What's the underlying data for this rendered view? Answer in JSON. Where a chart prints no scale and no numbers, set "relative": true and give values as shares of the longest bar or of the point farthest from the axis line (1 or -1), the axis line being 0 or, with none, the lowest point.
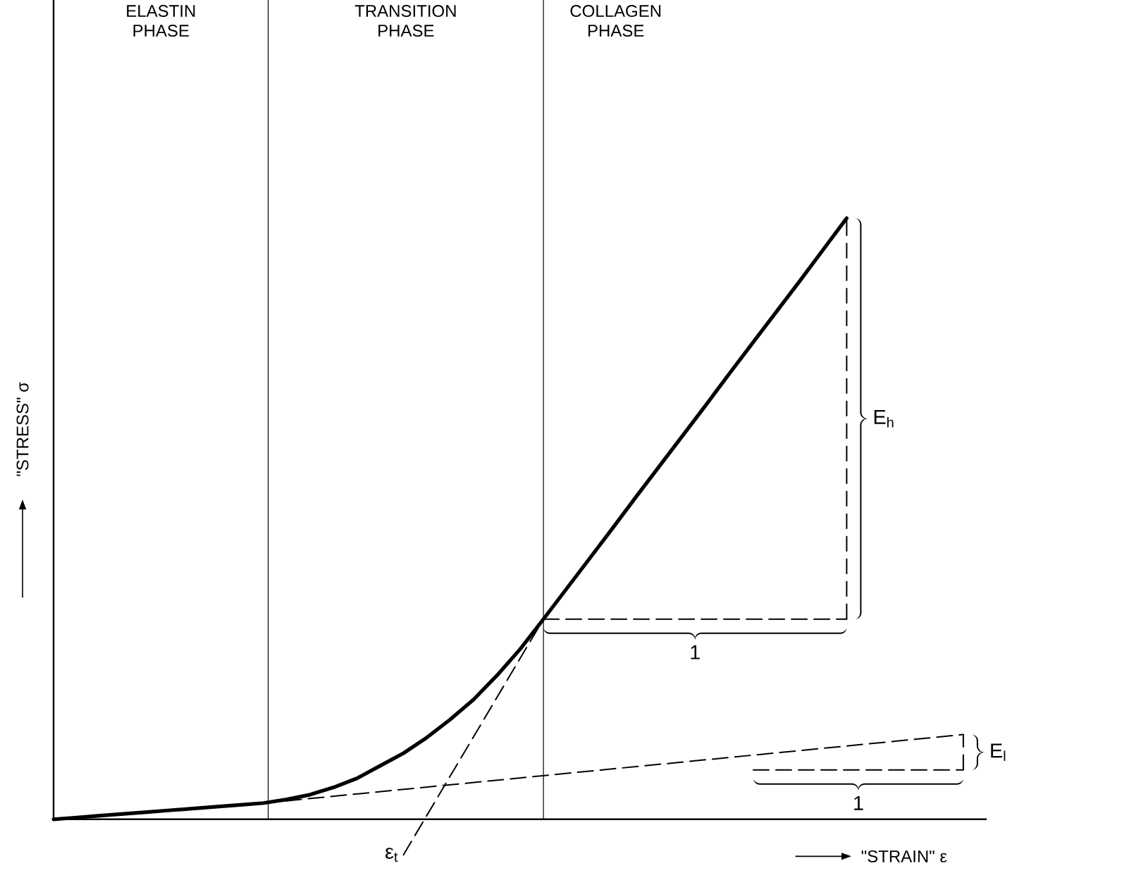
{
  "chart_data": {
    "type": "line",
    "relative": true,
    "xlabel": "\"STRAIN\" ε",
    "ylabel": "\"STRESS\" σ",
    "legend": false,
    "marker": "none",
    "categories": [
      null,
      null,
      null,
      null,
      null,
      null,
      null,
      null,
      null,
      null,
      null,
      null,
      null,
      null,
      null,
      null,
      null,
      null,
      null,
      null,
      null,
      null,
      null,
      null,
      null,
      null,
      null,
      null,
      null,
      null,
      null,
      null,
      null,
      null,
      null,
      null,
      null,
      null,
      null,
      null,
      null
    ],
    "series": [
      {
        "color": "#000000",
        "line_style": "solid",
        "values": [
          0,
          0.003,
          0.006,
          0.009,
          0.012,
          0.015,
          0.018,
          0.021,
          0.024,
          0.027,
          0.033,
          0.041,
          0.053,
          0.068,
          0.089,
          0.11,
          0.136,
          0.166,
          0.199,
          0.239,
          0.283,
          0.333,
          0.384,
          0.435,
          0.486,
          0.538,
          0.589,
          0.64,
          0.691,
          0.743,
          0.794,
          0.845,
          0.896,
          0.948,
          1,
          null,
          null,
          null,
          null,
          null,
          null
        ]
      },
      {
        "color": "#000000",
        "line_style": "dashed",
        "values": [
          null,
          null,
          null,
          null,
          null,
          null,
          null,
          null,
          null,
          0.027,
          null,
          null,
          null,
          null,
          null,
          null,
          null,
          null,
          null,
          null,
          null,
          null,
          null,
          null,
          null,
          null,
          null,
          null,
          null,
          null,
          null,
          null,
          null,
          null,
          null,
          null,
          null,
          null,
          null,
          0.141,
          null
        ]
      },
      {
        "color": "#000000",
        "line_style": "dashed",
        "values": [
          null,
          null,
          null,
          null,
          null,
          null,
          null,
          null,
          null,
          null,
          null,
          null,
          null,
          null,
          null,
          -0.059,
          null,
          null,
          null,
          null,
          null,
          0.333,
          null,
          null,
          null,
          null,
          null,
          null,
          null,
          null,
          null,
          null,
          null,
          null,
          null,
          null,
          null,
          null,
          null,
          null,
          null
        ]
      },
      {
        "color": "#000000",
        "line_style": "dashed",
        "values": [
          null,
          null,
          null,
          null,
          null,
          null,
          null,
          null,
          null,
          null,
          null,
          null,
          null,
          null,
          null,
          null,
          null,
          null,
          null,
          null,
          null,
          0.333,
          0.333,
          0.333,
          0.333,
          0.333,
          0.333,
          0.333,
          0.333,
          0.333,
          0.333,
          0.333,
          0.333,
          0.333,
          0.333,
          null,
          null,
          null,
          null,
          null,
          null
        ]
      },
      {
        "color": "#000000",
        "line_style": "dashed",
        "values": [
          null,
          null,
          null,
          null,
          null,
          null,
          null,
          null,
          null,
          null,
          null,
          null,
          null,
          null,
          null,
          null,
          null,
          null,
          null,
          null,
          null,
          null,
          null,
          null,
          null,
          null,
          null,
          null,
          null,
          null,
          0.082,
          0.082,
          0.082,
          0.082,
          0.082,
          0.082,
          0.082,
          0.082,
          0.082,
          0.082,
          null
        ]
      }
    ],
    "annotations": [
      "ELASTIN PHASE",
      "TRANSITION PHASE",
      "COLLAGEN PHASE",
      "1",
      "E$_{h}$",
      "1",
      "E$_{l}$",
      "ε$_{t}$"
    ]
  }
}
